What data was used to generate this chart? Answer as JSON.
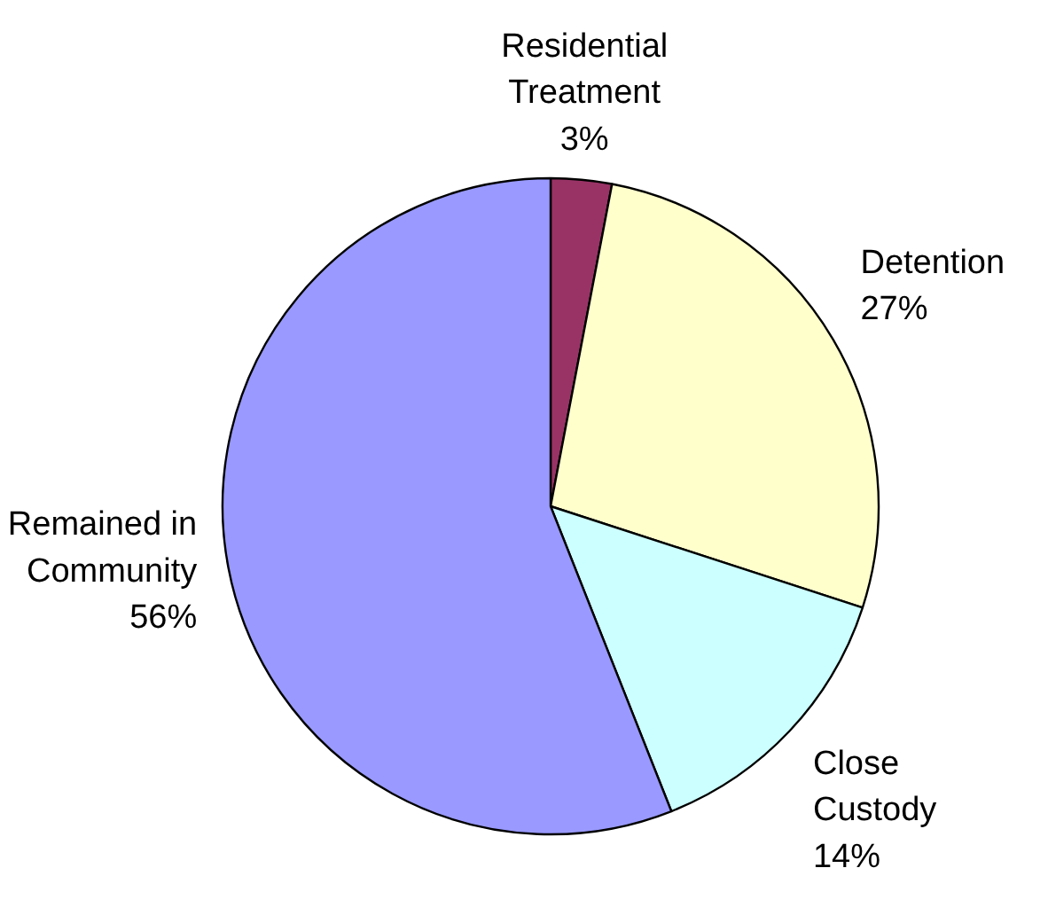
{
  "chart_data": {
    "type": "pie",
    "categories": [
      "Residential Treatment",
      "Detention",
      "Close Custody",
      "Remained in Community"
    ],
    "values": [
      3,
      27,
      14,
      56
    ],
    "value_labels": [
      "3%",
      "27%",
      "14%",
      "56%"
    ],
    "colors": [
      "#993366",
      "#ffffcc",
      "#ccffff",
      "#9999ff"
    ]
  }
}
